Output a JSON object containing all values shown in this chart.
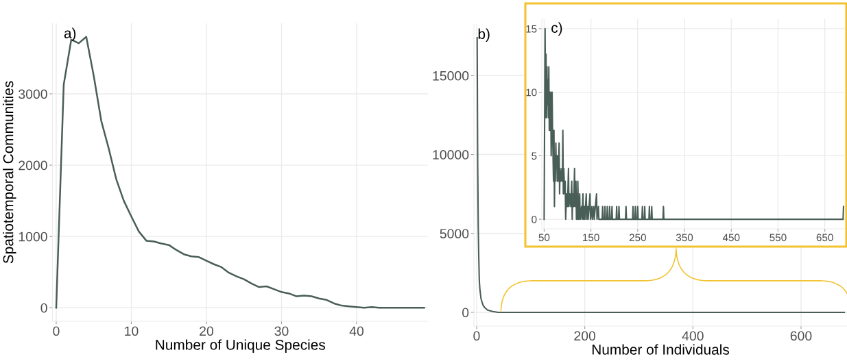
{
  "chart_data": [
    {
      "type": "line",
      "xlabel": "Number of Unique Species",
      "ylabel": "Spatiotemporal Communities",
      "annotations": [
        "a)"
      ],
      "grid": true,
      "xlim": [
        -0.5,
        49.5
      ],
      "ylim": [
        -190,
        3990
      ],
      "xticks": [
        0,
        10,
        20,
        30,
        40
      ],
      "yticks": [
        0,
        1000,
        2000,
        3000
      ],
      "x": [
        0,
        1,
        2,
        3,
        4,
        5,
        6,
        7,
        8,
        9,
        10,
        11,
        12,
        13,
        14,
        15,
        16,
        17,
        18,
        19,
        20,
        21,
        22,
        23,
        24,
        25,
        26,
        27,
        28,
        29,
        30,
        31,
        32,
        33,
        34,
        35,
        36,
        37,
        38,
        39,
        40,
        41,
        42,
        43,
        44,
        45,
        46,
        47,
        48,
        49
      ],
      "series": [
        {
          "color": "#4a5e58",
          "values": [
            0,
            3130,
            3760,
            3710,
            3800,
            3250,
            2620,
            2230,
            1800,
            1500,
            1280,
            1070,
            940,
            930,
            900,
            880,
            810,
            750,
            720,
            710,
            660,
            610,
            570,
            490,
            440,
            400,
            340,
            290,
            300,
            260,
            220,
            200,
            160,
            170,
            160,
            130,
            110,
            60,
            30,
            20,
            10,
            0,
            10,
            0,
            0,
            0,
            0,
            0,
            0,
            0
          ]
        }
      ]
    },
    {
      "type": "line",
      "xlabel": "Number of Individuals",
      "annotations": [
        "b)"
      ],
      "grid": true,
      "xlim": [
        -5,
        685
      ],
      "ylim": [
        -870,
        18270
      ],
      "xticks": [
        0,
        200,
        400,
        600
      ],
      "yticks": [
        0,
        5000,
        10000,
        15000
      ],
      "x": [
        1,
        2,
        3,
        4,
        5,
        6,
        8,
        10,
        12,
        15,
        20,
        25,
        30,
        40,
        50,
        100,
        200,
        400,
        680
      ],
      "series": [
        {
          "color": "#4a5e58",
          "values": [
            17400,
            9500,
            5500,
            3500,
            2000,
            1500,
            900,
            650,
            450,
            300,
            150,
            100,
            50,
            0,
            0,
            0,
            0,
            0,
            0
          ]
        }
      ]
    },
    {
      "type": "line",
      "annotations": [
        "c)"
      ],
      "grid": true,
      "xlim": [
        45,
        693
      ],
      "ylim": [
        -0.75,
        15.75
      ],
      "xticks": [
        50,
        150,
        250,
        350,
        450,
        550,
        650
      ],
      "yticks": [
        0,
        5,
        10,
        15
      ],
      "x": [
        50,
        52,
        53,
        54,
        55,
        56,
        57,
        58,
        59,
        60,
        61,
        62,
        63,
        64,
        65,
        66,
        67,
        68,
        69,
        70,
        71,
        72,
        73,
        74,
        75,
        76,
        77,
        78,
        79,
        80,
        82,
        83,
        84,
        86,
        88,
        89,
        90,
        91,
        92,
        94,
        95,
        96,
        98,
        100,
        102,
        103,
        105,
        107,
        109,
        110,
        111,
        113,
        115,
        116,
        118,
        119,
        120,
        121,
        122,
        123,
        124,
        126,
        127,
        130,
        131,
        133,
        134,
        136,
        137,
        140,
        141,
        143,
        144,
        148,
        149,
        152,
        153,
        156,
        157,
        162,
        163,
        166,
        167,
        174,
        175,
        176,
        179,
        180,
        181,
        184,
        185,
        186,
        189,
        190,
        191,
        194,
        195,
        196,
        204,
        205,
        206,
        209,
        210,
        211,
        224,
        225,
        226,
        239,
        240,
        241,
        244,
        245,
        246,
        249,
        250,
        251,
        259,
        260,
        261,
        264,
        265,
        266,
        274,
        275,
        276,
        279,
        280,
        281,
        304,
        305,
        306,
        689,
        690
      ],
      "series": [
        {
          "color": "#4a5e58",
          "values": [
            0,
            15,
            8,
            13,
            8,
            12,
            9,
            11,
            8,
            12,
            7,
            10,
            7,
            10,
            5,
            7,
            10,
            7,
            5,
            3,
            7,
            1,
            5,
            3,
            6,
            4,
            5,
            3,
            5,
            3,
            6,
            2,
            4,
            3,
            4,
            3,
            7,
            2,
            4,
            2,
            3,
            0,
            2,
            1,
            4,
            1,
            2,
            1,
            3,
            0,
            2,
            1,
            4,
            1,
            3,
            0,
            2,
            0,
            3,
            1,
            0,
            2,
            0,
            1,
            0,
            2,
            0,
            1,
            0,
            2,
            0,
            1,
            0,
            2,
            0,
            1,
            0,
            1,
            0,
            2,
            0,
            1,
            0,
            0,
            1,
            0,
            0,
            1,
            0,
            0,
            1,
            0,
            0,
            1,
            0,
            0,
            1,
            0,
            0,
            1,
            0,
            0,
            1,
            0,
            0,
            1,
            0,
            0,
            1,
            0,
            0,
            1,
            0,
            0,
            1,
            0,
            0,
            1,
            0,
            0,
            1,
            0,
            0,
            1,
            0,
            0,
            1,
            0,
            0,
            1,
            0,
            0,
            1
          ]
        }
      ]
    }
  ]
}
